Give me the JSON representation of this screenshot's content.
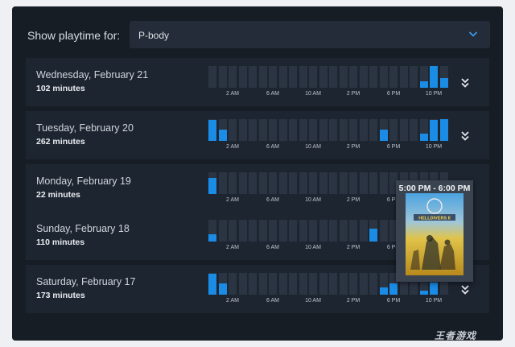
{
  "header": {
    "label": "Show playtime for:",
    "selected_game": "P-body"
  },
  "axis_ticks": [
    "2 AM",
    "6 AM",
    "10 AM",
    "2 PM",
    "6 PM",
    "10 PM"
  ],
  "days": [
    {
      "day": "Wednesday, February 21",
      "minutes": "102 minutes",
      "hours": [
        0,
        0,
        0,
        0,
        0,
        0,
        0,
        0,
        0,
        0,
        0,
        0,
        0,
        0,
        0,
        0,
        0,
        0,
        0,
        0,
        0,
        0.3,
        1.0,
        0.45
      ]
    },
    {
      "day": "Tuesday, February 20",
      "minutes": "262 minutes",
      "hours": [
        0.95,
        0.5,
        0,
        0,
        0,
        0,
        0,
        0,
        0,
        0,
        0,
        0,
        0,
        0,
        0,
        0,
        0,
        0.5,
        0,
        0,
        0,
        0.35,
        0.95,
        1.0
      ]
    },
    {
      "day": "Monday, February 19",
      "minutes": "22 minutes",
      "hours": [
        0.75,
        0,
        0,
        0,
        0,
        0,
        0,
        0,
        0,
        0,
        0,
        0,
        0,
        0,
        0,
        0,
        0,
        0,
        0,
        0,
        0,
        0,
        0,
        0
      ]
    },
    {
      "day": "Sunday, February 18",
      "minutes": "110 minutes",
      "hours": [
        0.35,
        0,
        0,
        0,
        0,
        0,
        0,
        0,
        0,
        0,
        0,
        0,
        0,
        0,
        0,
        0,
        0.6,
        0,
        0,
        0,
        0,
        0,
        0,
        0
      ]
    },
    {
      "day": "Saturday, February 17",
      "minutes": "173 minutes",
      "hours": [
        0.95,
        0.5,
        0,
        0,
        0,
        0,
        0,
        0,
        0,
        0,
        0,
        0,
        0,
        0,
        0,
        0,
        0,
        0.35,
        0.5,
        0,
        0,
        0.2,
        0.55,
        0
      ]
    }
  ],
  "tooltip": {
    "time_range": "5:00 PM - 6:00 PM",
    "game_logo": "HELLDIVERS II"
  },
  "watermark": "王者游戏",
  "colors": {
    "bar": "#1a8ce6",
    "slot": "#2b3442",
    "panel": "#171d25",
    "row": "#1d2530"
  }
}
